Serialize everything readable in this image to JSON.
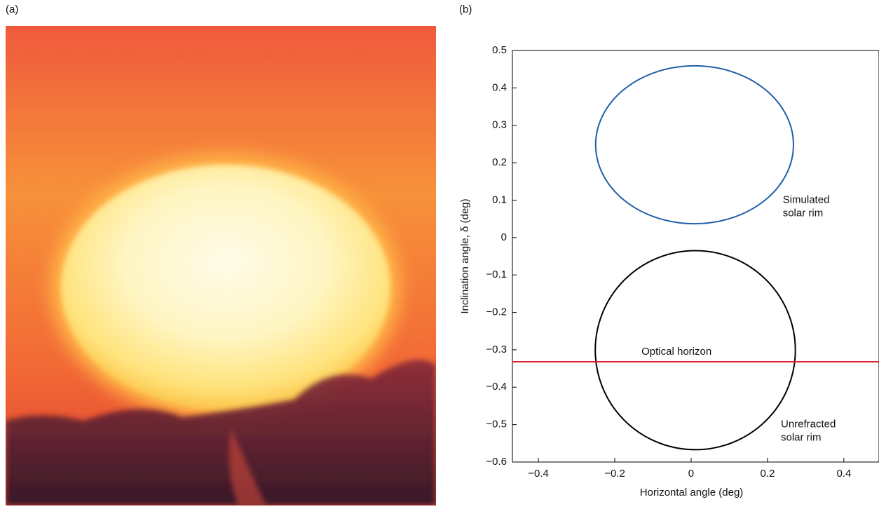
{
  "panel_labels": [
    "(a)",
    "(b)"
  ],
  "chart_data": {
    "type": "ellipse",
    "xlabel": "Horizontal angle (deg)",
    "ylabel": "Inclination angle, δ (deg)",
    "xlim": [
      -0.468,
      0.492
    ],
    "ylim": [
      -0.6,
      0.5
    ],
    "xticks": [
      {
        "value": -0.4,
        "label": "−0.4"
      },
      {
        "value": -0.2,
        "label": "−0.2"
      },
      0,
      0.2,
      0.4
    ],
    "yticks": [
      {
        "value": -0.6,
        "label": "−0.6"
      },
      {
        "value": -0.5,
        "label": "−0.5"
      },
      {
        "value": -0.4,
        "label": "−0.4"
      },
      {
        "value": -0.3,
        "label": "−0.3"
      },
      {
        "value": -0.2,
        "label": "−0.2"
      },
      {
        "value": -0.1,
        "label": "−0.1"
      },
      0,
      0.1,
      0.2,
      0.3,
      0.4,
      0.5
    ],
    "series": [
      {
        "name": "Simulated solar rim",
        "color": "#1f5fa8",
        "cx": 0.009,
        "cy": 0.248,
        "rx": 0.259,
        "ry": 0.211,
        "label_x": 0.24,
        "label_y": 0.1
      },
      {
        "name": "Unrefracted solar rim",
        "color": "#000000",
        "cx": 0.011,
        "cy": -0.301,
        "rx": 0.262,
        "ry": 0.266,
        "label_x": 0.235,
        "label_y": -0.5
      }
    ],
    "hlines": [
      {
        "name": "Optical horizon",
        "color": "#e0202a",
        "value": -0.332,
        "label_x": -0.13
      }
    ]
  }
}
